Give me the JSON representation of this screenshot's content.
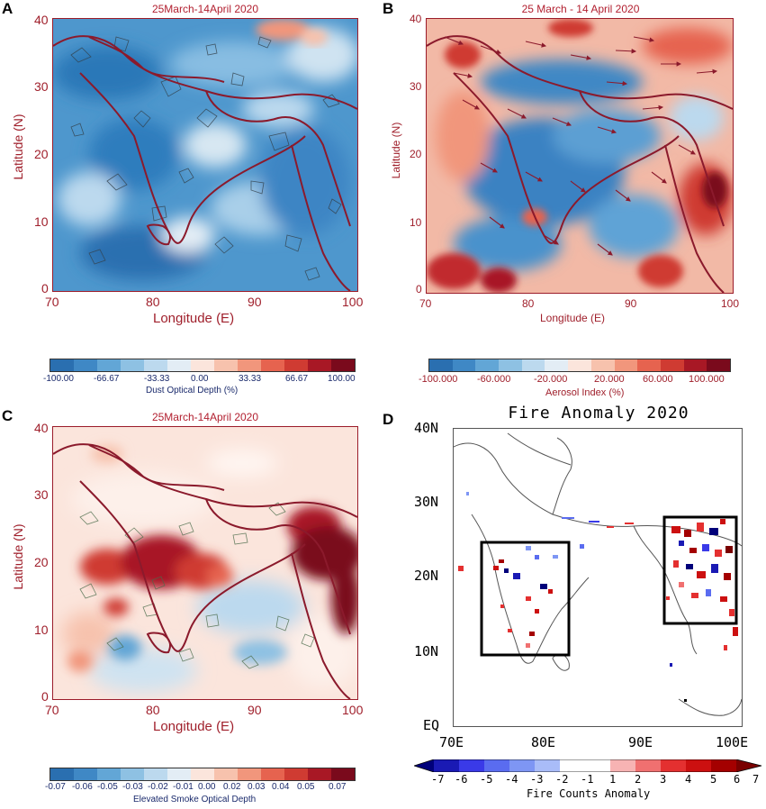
{
  "chart_data": [
    {
      "panel": "A",
      "type": "heatmap",
      "title": "25March-14April 2020",
      "xlabel": "Longitude (E)",
      "ylabel": "Latitude (N)",
      "xlim": [
        70,
        100
      ],
      "ylim": [
        0,
        40
      ],
      "xticks": [
        "70",
        "80",
        "90",
        "100"
      ],
      "yticks": [
        "0",
        "10",
        "20",
        "30",
        "40"
      ],
      "colorbar_label": "Dust Optical Depth (%)",
      "colorbar_ticks": [
        "-100.00",
        "-66.67",
        "-33.33",
        "0.00",
        "33.33",
        "66.67",
        "100.00"
      ],
      "colorbar_range": [
        -100,
        100
      ],
      "colors": [
        "#2a6fb0",
        "#3f88c5",
        "#62a6d6",
        "#8ec1e3",
        "#bcd9ee",
        "#e3edf5",
        "#fbe5dc",
        "#f7c2ad",
        "#f1967c",
        "#e6634f",
        "#cf3b32",
        "#a81825",
        "#7a0a1c"
      ]
    },
    {
      "panel": "B",
      "type": "heatmap",
      "title": "25 March - 14 April 2020",
      "xlabel": "Longitude (E)",
      "ylabel": "Latitude (N)",
      "xlim": [
        70,
        100
      ],
      "ylim": [
        0,
        40
      ],
      "xticks": [
        "70",
        "80",
        "90",
        "100"
      ],
      "yticks": [
        "0",
        "10",
        "20",
        "30",
        "40"
      ],
      "colorbar_label": "Aerosol Index (%)",
      "colorbar_ticks": [
        "-100.000",
        "-60.000",
        "-20.000",
        "20.000",
        "60.000",
        "100.000"
      ],
      "colorbar_range": [
        -100,
        100
      ]
    },
    {
      "panel": "C",
      "type": "heatmap",
      "title": "25March-14April 2020",
      "xlabel": "Longitude (E)",
      "ylabel": "Latitude (N)",
      "xlim": [
        70,
        100
      ],
      "ylim": [
        0,
        40
      ],
      "xticks": [
        "70",
        "80",
        "90",
        "100"
      ],
      "yticks": [
        "0",
        "10",
        "20",
        "30",
        "40"
      ],
      "colorbar_label": "Elevated Smoke Optical Depth",
      "colorbar_ticks": [
        "-0.07",
        "-0.06",
        "-0.05",
        "-0.03",
        "-0.02",
        "-0.01",
        "0.00",
        "0.02",
        "0.03",
        "0.04",
        "0.05",
        "0.07"
      ],
      "colorbar_range": [
        -0.07,
        0.07
      ]
    },
    {
      "panel": "D",
      "type": "heatmap",
      "title": "Fire Anomaly 2020",
      "xlim": [
        70,
        100
      ],
      "ylim": [
        0,
        40
      ],
      "xticks": [
        "70E",
        "80E",
        "90E",
        "100E"
      ],
      "yticks": [
        "EQ",
        "10N",
        "20N",
        "30N",
        "40N"
      ],
      "colorbar_label": "Fire Counts Anomaly",
      "colorbar_ticks": [
        "-7",
        "-6",
        "-5",
        "-4",
        "-3",
        "-2",
        "-1",
        "1",
        "2",
        "3",
        "4",
        "5",
        "6",
        "7"
      ],
      "colorbar_range": [
        -7,
        7
      ],
      "boxes": [
        {
          "lon": [
            72.5,
            81.5
          ],
          "lat": [
            10,
            25
          ]
        },
        {
          "lon": [
            92,
            99.5
          ],
          "lat": [
            14,
            28.5
          ]
        }
      ],
      "colors": [
        "#00007a",
        "#1a1ab4",
        "#3a3ae8",
        "#5a6cf0",
        "#7e96f4",
        "#a9bcf8",
        "#ffffff",
        "#ffffff",
        "#f7b3b3",
        "#f07070",
        "#e43030",
        "#cc1010",
        "#a40000",
        "#7a0000"
      ]
    }
  ]
}
